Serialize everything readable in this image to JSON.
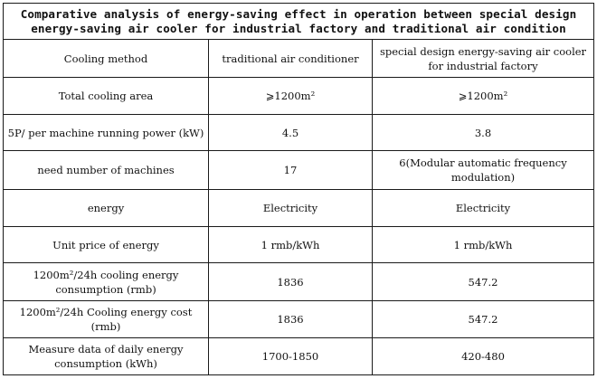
{
  "table": {
    "title_lines": [
      "Comparative analysis of energy-saving effect in operation between special design",
      "energy-saving air cooler for industrial factory and traditional air condition"
    ],
    "header": {
      "label": "Cooling method",
      "col_traditional": "traditional air conditioner",
      "col_special": "special design energy-saving air cooler for industrial factory"
    },
    "rows": [
      {
        "label": "Total cooling area",
        "traditional": "⩾1200m²",
        "special": "⩾1200m²"
      },
      {
        "label": "5P/ per machine running power (kW)",
        "traditional": "4.5",
        "special": "3.8"
      },
      {
        "label": "need number of machines",
        "traditional": "17",
        "special": "6(Modular automatic frequency modulation)"
      },
      {
        "label": "energy",
        "traditional": "Electricity",
        "special": "Electricity"
      },
      {
        "label": "Unit price of energy",
        "traditional": "1 rmb/kWh",
        "special": "1 rmb/kWh"
      },
      {
        "label": "1200m²/24h cooling energy consumption (rmb)",
        "traditional": "1836",
        "special": "547.2"
      },
      {
        "label": "1200m²/24h Cooling energy cost (rmb)",
        "traditional": "1836",
        "special": "547.2"
      },
      {
        "label": "Measure data of daily energy consumption (kWh)",
        "traditional": "1700-1850",
        "special": "420-480"
      }
    ]
  }
}
